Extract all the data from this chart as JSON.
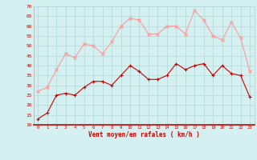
{
  "x": [
    0,
    1,
    2,
    3,
    4,
    5,
    6,
    7,
    8,
    9,
    10,
    11,
    12,
    13,
    14,
    15,
    16,
    17,
    18,
    19,
    20,
    21,
    22,
    23
  ],
  "wind_avg": [
    13,
    16,
    25,
    26,
    25,
    29,
    32,
    32,
    30,
    35,
    40,
    37,
    33,
    33,
    35,
    41,
    38,
    40,
    41,
    35,
    40,
    36,
    35,
    24
  ],
  "wind_gust": [
    27,
    29,
    38,
    46,
    44,
    51,
    50,
    46,
    52,
    60,
    64,
    63,
    56,
    56,
    60,
    60,
    56,
    68,
    63,
    55,
    53,
    62,
    54,
    37
  ],
  "ylim": [
    10,
    70
  ],
  "yticks": [
    10,
    15,
    20,
    25,
    30,
    35,
    40,
    45,
    50,
    55,
    60,
    65,
    70
  ],
  "xlabel": "Vent moyen/en rafales ( km/h )",
  "bg_color": "#d5f0f0",
  "grid_color": "#b0d8d8",
  "avg_color": "#cc0000",
  "gust_color": "#ff9999",
  "arrow_color": "#cc0000",
  "label_color": "#cc0000"
}
